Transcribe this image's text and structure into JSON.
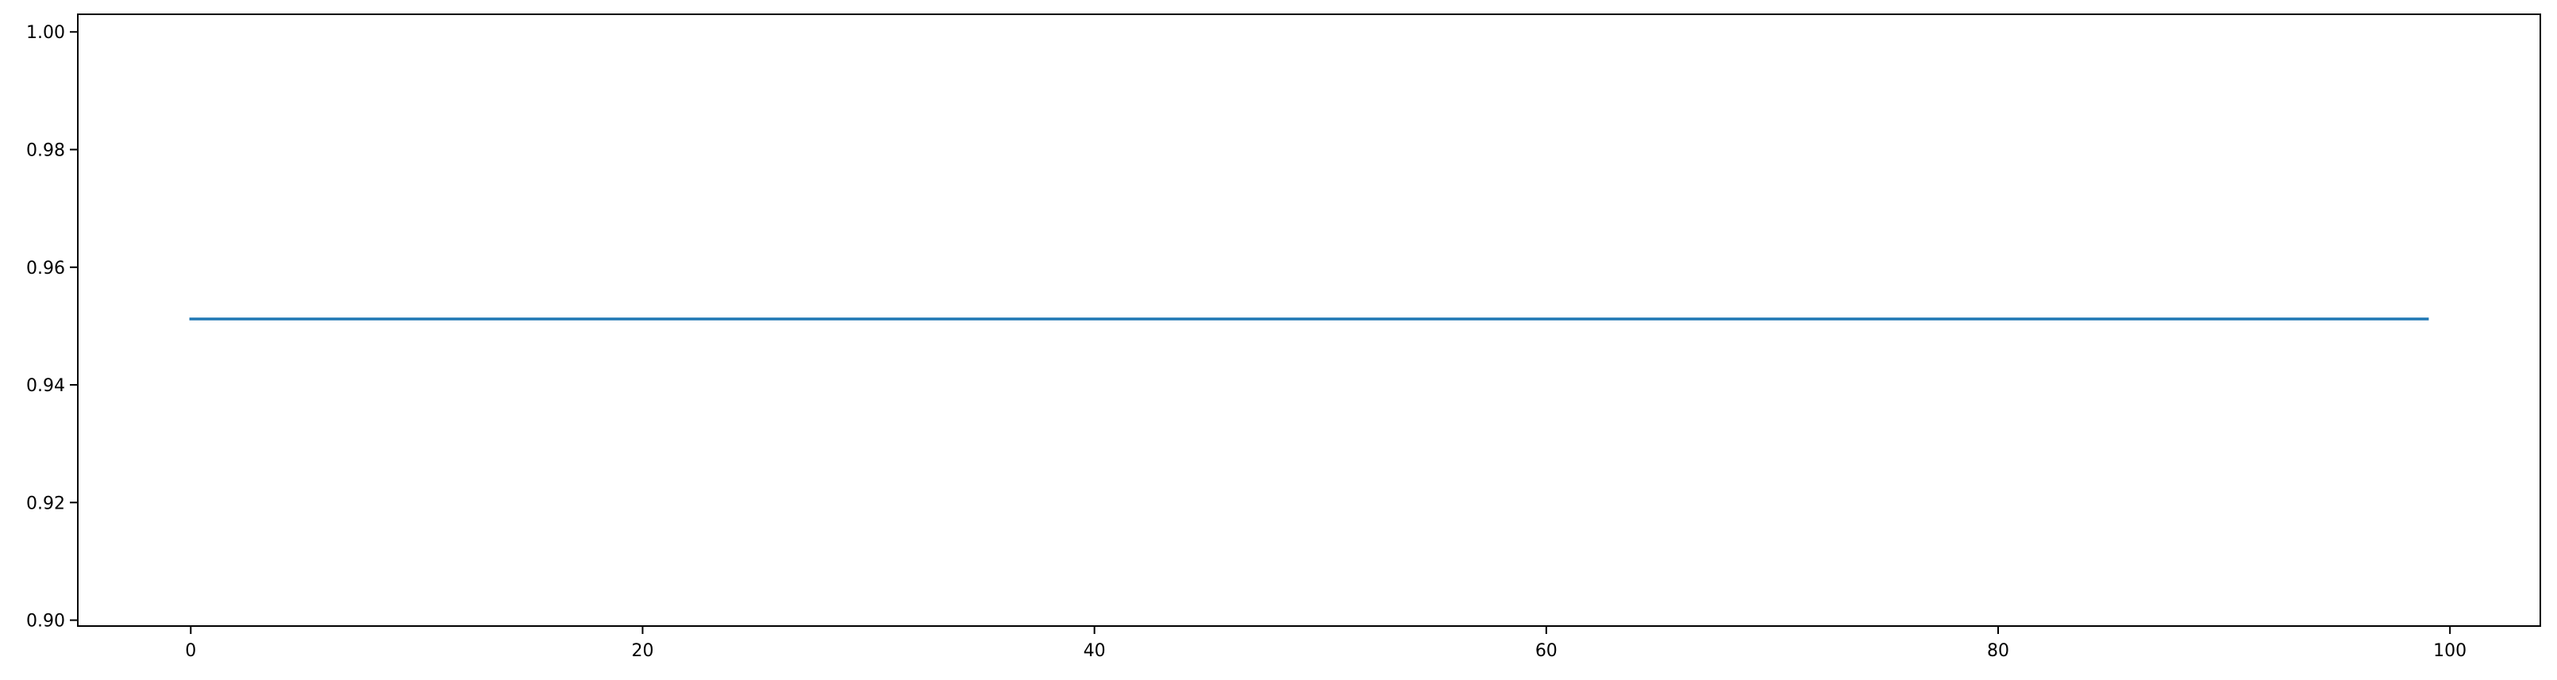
{
  "chart_data": {
    "type": "line",
    "title": "",
    "xlabel": "",
    "ylabel": "",
    "xlim": [
      -5,
      104
    ],
    "ylim": [
      0.899,
      1.003
    ],
    "x_ticks": [
      0,
      20,
      40,
      60,
      80,
      100
    ],
    "y_ticks": [
      0.9,
      0.92,
      0.94,
      0.96,
      0.98,
      1.0
    ],
    "grid": false,
    "legend": "none",
    "colors": {
      "series": "#1f77b4",
      "axes": "#000000",
      "background": "#ffffff"
    },
    "series": [
      {
        "x_start": 0,
        "x_end": 99,
        "y": 0.9512
      }
    ]
  }
}
